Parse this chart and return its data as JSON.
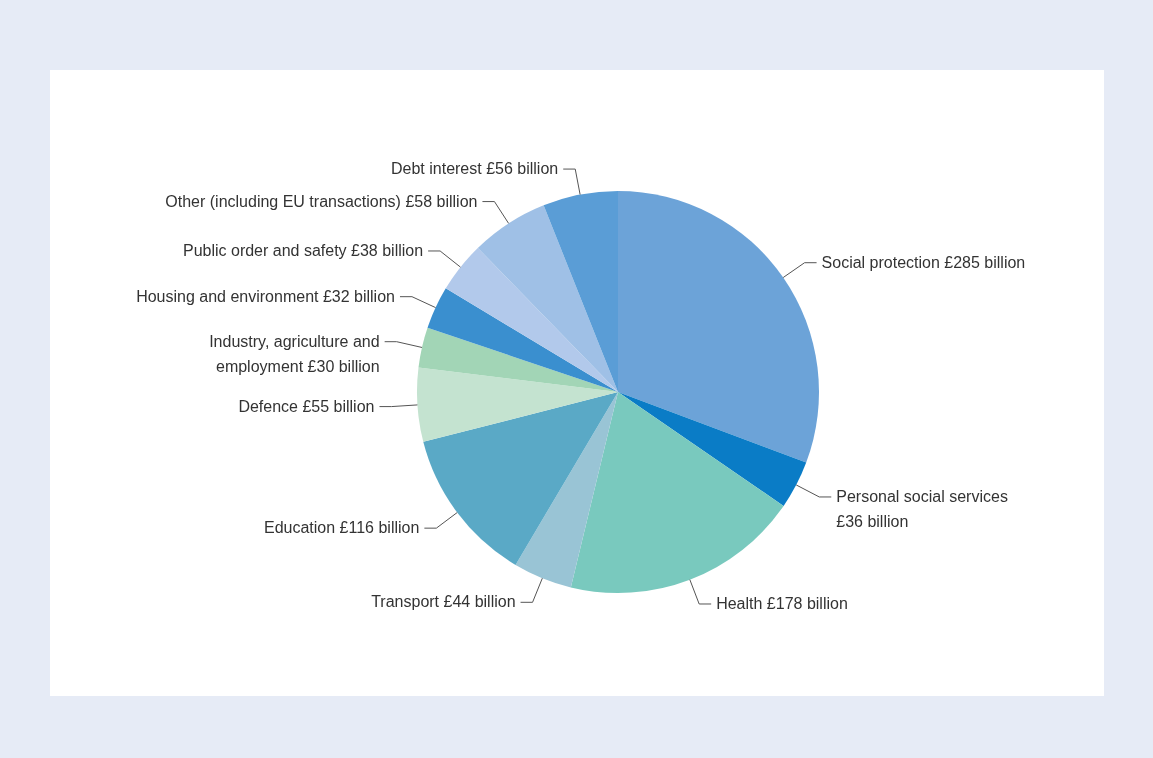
{
  "chart_data": {
    "type": "pie",
    "categories": [
      "Social protection",
      "Personal social services",
      "Health",
      "Transport",
      "Education",
      "Defence",
      "Industry, agriculture and employment",
      "Housing and environment",
      "Public order and safety",
      "Other (including EU transactions)",
      "Debt interest"
    ],
    "values": [
      285,
      36,
      178,
      44,
      116,
      55,
      30,
      32,
      38,
      58,
      56
    ],
    "value_labels": [
      "£285 billion",
      "£36 billion",
      "£178 billion",
      "£44 billion",
      "£116 billion",
      "£55 billion",
      "£30 billion",
      "£32 billion",
      "£38 billion",
      "£58 billion",
      "£56 billion"
    ],
    "colors": [
      "#6ca3d8",
      "#0a7cc6",
      "#79c9be",
      "#99c4d5",
      "#5aa9c6",
      "#c4e3d0",
      "#a2d5b6",
      "#3a8fcf",
      "#b2c9eb",
      "#9fc0e6",
      "#5a9dd6"
    ]
  }
}
